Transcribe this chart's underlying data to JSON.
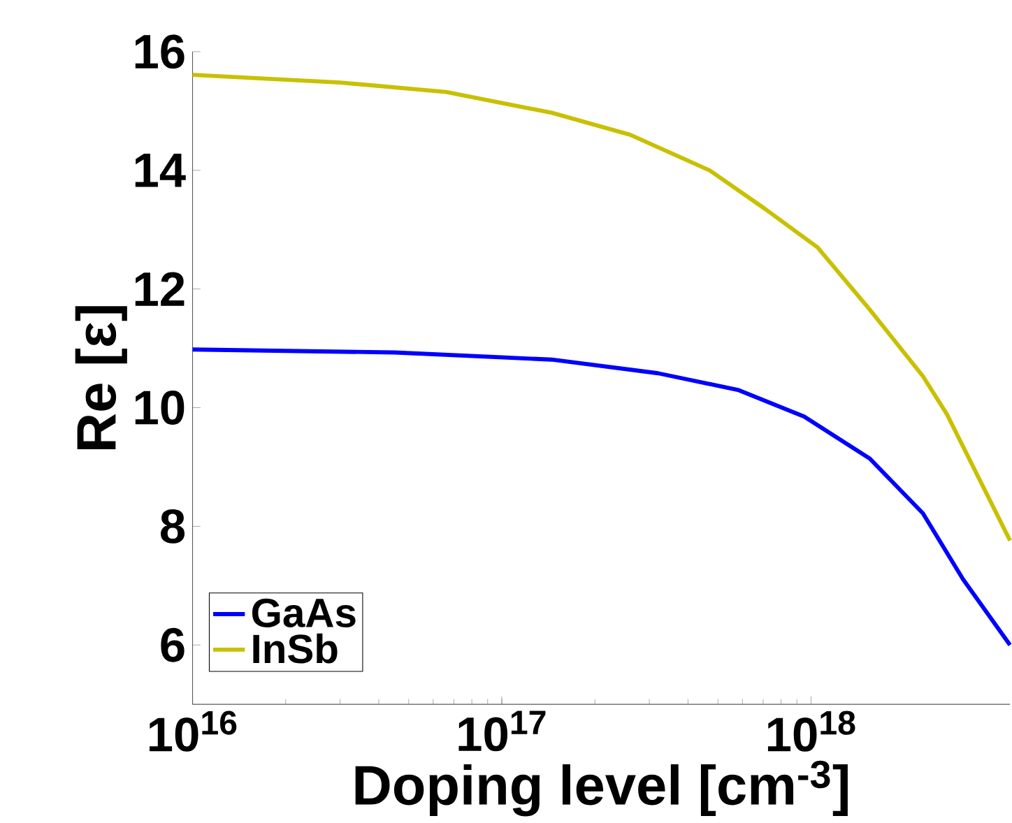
{
  "chart_data": {
    "type": "line",
    "xlabel": "Doping level [cm$^{-3}$]",
    "ylabel": "Re [ε]",
    "log": "x",
    "xlim": [
      1e+16,
      4.4e+18
    ],
    "ylim": [
      5,
      16
    ],
    "xticks": [
      {
        "value": 1e+16,
        "label": "10$^{16}$"
      },
      {
        "value": 1e+17,
        "label": "10$^{17}$"
      },
      {
        "value": 1e+18,
        "label": "10$^{18}$"
      }
    ],
    "yticks": [
      6,
      8,
      10,
      12,
      14,
      16
    ],
    "grid": false,
    "legend": "bottom left",
    "marker": "none",
    "line_style": "solid",
    "series": [
      {
        "name": "GaAs",
        "color": "#0000ff",
        "x": [
          1e+16,
          4.5e+16,
          1.45e+17,
          3.2e+17,
          5.8e+17,
          9.5e+17,
          1.55e+18,
          2.3e+18,
          3.1e+18,
          4.4e+18
        ],
        "values": [
          10.98,
          10.93,
          10.81,
          10.58,
          10.3,
          9.85,
          9.14,
          8.22,
          7.11,
          6.0
        ]
      },
      {
        "name": "InSb",
        "color": "#c8c000",
        "x": [
          1e+16,
          3e+16,
          6.6e+16,
          1.45e+17,
          2.6e+17,
          4.7e+17,
          7.1e+17,
          1.05e+18,
          1.55e+18,
          2.3e+18,
          2.75e+18,
          4.4e+18
        ],
        "values": [
          15.61,
          15.48,
          15.32,
          14.97,
          14.6,
          14.0,
          13.35,
          12.7,
          11.65,
          10.53,
          9.89,
          7.76
        ]
      }
    ]
  }
}
